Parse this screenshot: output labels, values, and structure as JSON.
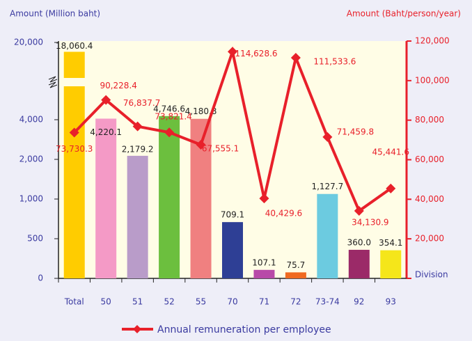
{
  "chart_data": {
    "type": "bar_line",
    "y_label": "Amount (Million baht)",
    "y2_label": "Amount (Baht/person/year)",
    "x_label": "Division",
    "categories": [
      "Total",
      "50",
      "51",
      "52",
      "55",
      "70",
      "71",
      "72",
      "73-74",
      "92",
      "93"
    ],
    "series": [
      {
        "name": "Amount",
        "type": "bar",
        "colors": [
          "#ffcc00",
          "#f49ac6",
          "#b99cc9",
          "#6cbf3e",
          "#f08080",
          "#2e3f95",
          "#b84aa8",
          "#f06a20",
          "#6ccbe0",
          "#9b2a68",
          "#f5e61a"
        ],
        "values": [
          18060.4,
          4220.1,
          2179.2,
          4746.6,
          4180.8,
          709.1,
          107.1,
          75.7,
          1127.7,
          360.0,
          354.1
        ],
        "value_labels": [
          "18,060.4",
          "4,220.1",
          "2,179.2",
          "4,746.6",
          "4,180.8",
          "709.1",
          "107.1",
          "75.7",
          "1,127.7",
          "360.0",
          "354.1"
        ]
      },
      {
        "name": "Annual remuneration per employee",
        "type": "line",
        "axis": "y2",
        "color": "#e8202a",
        "values": [
          73730.3,
          90228.4,
          76837.7,
          73821.4,
          67555.1,
          114628.6,
          40429.6,
          111533.6,
          71459.8,
          34130.9,
          45441.6
        ],
        "value_labels": [
          "73,730.3",
          "90,228.4",
          "76,837.7",
          "73,821.4",
          "67,555.1",
          "114,628.6",
          "40,429.6",
          "111,533.6",
          "71,459.8",
          "34,130.9",
          "45,441.6"
        ]
      }
    ],
    "ylim": [
      0,
      20000
    ],
    "yticks": [
      0,
      500,
      {
        "value": 1000,
        "label": "1,000"
      },
      {
        "value": 2000,
        "label": "2,000"
      },
      {
        "value": 4000,
        "label": "4,000"
      },
      {
        "value": 20000,
        "label": "20,000"
      }
    ],
    "y2lim": [
      0,
      120000
    ],
    "y2ticks": [
      0,
      {
        "value": 20000,
        "label": "20,000"
      },
      {
        "value": 40000,
        "label": "40,000"
      },
      {
        "value": 60000,
        "label": "60,000"
      },
      {
        "value": 80000,
        "label": "80,000"
      },
      {
        "value": 100000,
        "label": "100,000"
      },
      {
        "value": 120000,
        "label": "120,000"
      }
    ]
  }
}
